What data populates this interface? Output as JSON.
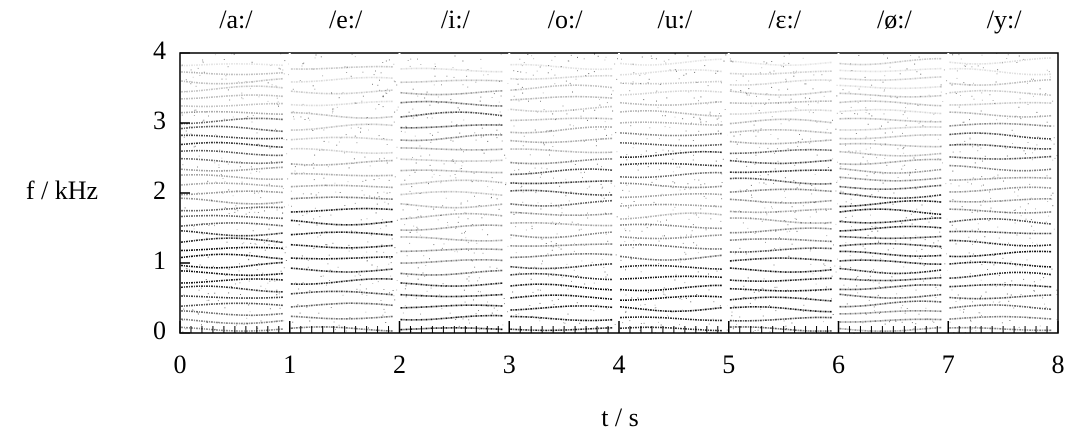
{
  "chart_data": {
    "type": "spectrogram",
    "categories": [
      "/a:/",
      "/e:/",
      "/i:/",
      "/o:/",
      "/u:/",
      "/ɛ:/",
      "/ø:/",
      "/y:/"
    ],
    "xlabel": "t / s",
    "ylabel": "f / kHz",
    "xlim": [
      0,
      8
    ],
    "ylim": [
      0,
      4
    ],
    "xticks": [
      0,
      1,
      2,
      3,
      4,
      5,
      6,
      7,
      8
    ],
    "yticks": [
      0,
      1,
      2,
      3,
      4
    ]
  }
}
